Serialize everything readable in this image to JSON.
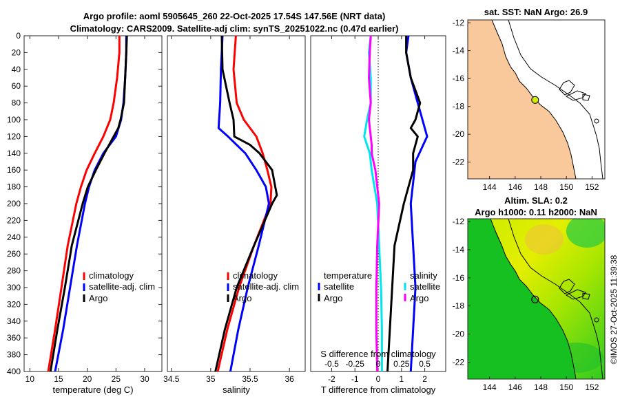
{
  "titles": {
    "line1": "Argo profile: aoml 5905645_260 22-Oct-2025 17.54S 147.56E (NRT data)",
    "line2": "Climatology: CARS2009. Satellite-adj clim: synTS_20251022.nc (0.47d earlier)"
  },
  "credit": "©IMOS 27-Oct-2025 11:39:38",
  "colors": {
    "climatology": "#ff0000",
    "satellite": "#0000ff",
    "argo": "#000000",
    "t_diff": "#ff00ff",
    "s_diff": "#00e5ee",
    "land": "#f9c89b",
    "sea": "#ffffff"
  },
  "chart_data": [
    {
      "type": "line",
      "id": "temperature",
      "title": "",
      "xlabel": "temperature (deg C)",
      "ylabel": "",
      "xlim": [
        9,
        33
      ],
      "ylim": [
        0,
        400
      ],
      "xticks": [
        10,
        15,
        20,
        25,
        30
      ],
      "yticks": [
        0,
        20,
        40,
        60,
        80,
        100,
        120,
        140,
        160,
        180,
        200,
        220,
        240,
        260,
        280,
        300,
        320,
        340,
        360,
        380,
        400
      ],
      "legend": [
        "climatology",
        "satellite-adj. clim",
        "Argo"
      ],
      "series": [
        {
          "name": "climatology",
          "depth": [
            0,
            20,
            50,
            80,
            100,
            120,
            140,
            160,
            180,
            200,
            250,
            300,
            350,
            400
          ],
          "values": [
            25.6,
            25.6,
            25.2,
            24.6,
            24.0,
            22.8,
            21.3,
            19.9,
            18.9,
            18.1,
            16.6,
            15.5,
            14.4,
            13.2
          ]
        },
        {
          "name": "satellite-adj. clim",
          "depth": [
            0,
            20,
            50,
            80,
            100,
            120,
            140,
            160,
            180,
            200,
            250,
            300,
            350,
            400
          ],
          "values": [
            26.8,
            26.8,
            26.6,
            26.3,
            25.9,
            25.0,
            22.8,
            21.3,
            20.3,
            19.6,
            18.2,
            17.0,
            15.8,
            14.4
          ]
        },
        {
          "name": "Argo",
          "depth": [
            0,
            20,
            50,
            80,
            100,
            110,
            120,
            140,
            160,
            180,
            200,
            250,
            300,
            350,
            400
          ],
          "values": [
            26.9,
            26.8,
            26.6,
            26.4,
            25.8,
            25.4,
            24.6,
            23.0,
            21.5,
            20.1,
            19.2,
            17.3,
            16.1,
            14.8,
            13.6
          ]
        }
      ]
    },
    {
      "type": "line",
      "id": "salinity",
      "title": "",
      "xlabel": "salinity",
      "ylabel": "",
      "xlim": [
        34.45,
        36.2
      ],
      "ylim": [
        0,
        400
      ],
      "xticks": [
        34.5,
        35,
        35.5,
        36
      ],
      "xticklabels": [
        "34.5",
        "35",
        "35.5",
        "36"
      ],
      "legend": [
        "climatology",
        "satellite-adj. clim",
        "Argo"
      ],
      "series": [
        {
          "name": "climatology",
          "depth": [
            0,
            40,
            80,
            100,
            120,
            140,
            160,
            180,
            200,
            250,
            300,
            350,
            400
          ],
          "values": [
            35.32,
            35.29,
            35.33,
            35.42,
            35.58,
            35.66,
            35.72,
            35.77,
            35.76,
            35.55,
            35.36,
            35.21,
            35.09
          ]
        },
        {
          "name": "satellite-adj. clim",
          "depth": [
            0,
            40,
            80,
            110,
            120,
            140,
            160,
            180,
            200,
            250,
            300,
            350,
            400
          ],
          "values": [
            35.15,
            35.13,
            35.12,
            35.1,
            35.22,
            35.44,
            35.58,
            35.7,
            35.74,
            35.61,
            35.47,
            35.35,
            35.25
          ]
        },
        {
          "name": "Argo",
          "depth": [
            0,
            40,
            80,
            100,
            120,
            130,
            140,
            160,
            180,
            190,
            200,
            250,
            300,
            350,
            400
          ],
          "values": [
            35.14,
            35.15,
            35.24,
            35.29,
            35.3,
            35.5,
            35.62,
            35.78,
            35.82,
            35.84,
            35.78,
            35.55,
            35.33,
            35.18,
            35.06
          ]
        }
      ]
    },
    {
      "type": "line",
      "id": "difference",
      "title": "",
      "xlabel": "T difference from climatology",
      "ylabel": "",
      "xlim": [
        -2.9,
        2.9
      ],
      "ylim": [
        0,
        400
      ],
      "xticks": [
        -2,
        -1,
        0,
        1,
        2
      ],
      "top_axis_label": "S difference from climatology",
      "top_ticklabels": [
        "-0.5",
        "-0.25",
        "0",
        "0.25",
        "0.5"
      ],
      "legend_left": [
        "temperature",
        "satellite",
        "Argo"
      ],
      "legend_right": [
        "salinity",
        "satellite",
        "Argo"
      ],
      "series": [
        {
          "name": "T satellite",
          "depth": [
            0,
            20,
            50,
            80,
            100,
            120,
            150,
            200,
            250,
            300,
            350,
            400
          ],
          "values": [
            1.3,
            1.2,
            1.4,
            1.7,
            1.9,
            2.1,
            1.6,
            1.4,
            1.5,
            1.6,
            1.5,
            1.4
          ]
        },
        {
          "name": "T Argo",
          "depth": [
            0,
            20,
            50,
            80,
            100,
            110,
            120,
            140,
            160,
            200,
            250,
            300,
            350,
            400
          ],
          "values": [
            1.2,
            1.2,
            1.4,
            1.8,
            1.6,
            1.4,
            1.7,
            1.5,
            1.5,
            1.1,
            0.7,
            0.6,
            0.5,
            0.4
          ]
        },
        {
          "name": "S satellite",
          "depth": [
            0,
            20,
            50,
            80,
            100,
            120,
            140,
            160,
            200,
            250,
            300,
            350,
            400
          ],
          "values": [
            -0.08,
            -0.1,
            -0.08,
            -0.08,
            -0.12,
            -0.15,
            -0.09,
            -0.07,
            -0.01,
            0.01,
            0.03,
            0.04,
            0.04
          ]
        },
        {
          "name": "S Argo",
          "depth": [
            0,
            20,
            50,
            80,
            100,
            120,
            130,
            140,
            160,
            200,
            250,
            300,
            350,
            400
          ],
          "values": [
            -0.08,
            -0.09,
            -0.1,
            -0.08,
            -0.1,
            -0.08,
            -0.07,
            -0.07,
            -0.03,
            0.01,
            -0.01,
            -0.02,
            -0.02,
            -0.01
          ]
        }
      ]
    },
    {
      "type": "scatter",
      "id": "sst_map",
      "title": "sat. SST: NaN Argo: 26.9",
      "xlim": [
        142.3,
        153
      ],
      "ylim": [
        -23.2,
        -11.8
      ],
      "xticks": [
        144,
        146,
        148,
        150,
        152
      ],
      "yticks": [
        -12,
        -14,
        -16,
        -18,
        -20,
        -22
      ],
      "point": {
        "lon": 147.56,
        "lat": -17.54,
        "label": "Argo"
      }
    },
    {
      "type": "heatmap",
      "id": "sla_map",
      "title": "Altim. SLA: 0.2",
      "subtitle": "Argo h1000: 0.11 h2000: NaN",
      "xlim": [
        142.3,
        153
      ],
      "ylim": [
        -23.2,
        -11.8
      ],
      "xticks": [
        144,
        146,
        148,
        150,
        152
      ],
      "yticks": [
        -12,
        -14,
        -16,
        -18,
        -20,
        -22
      ],
      "point": {
        "lon": 147.56,
        "lat": -17.54,
        "label": "Argo"
      }
    }
  ]
}
